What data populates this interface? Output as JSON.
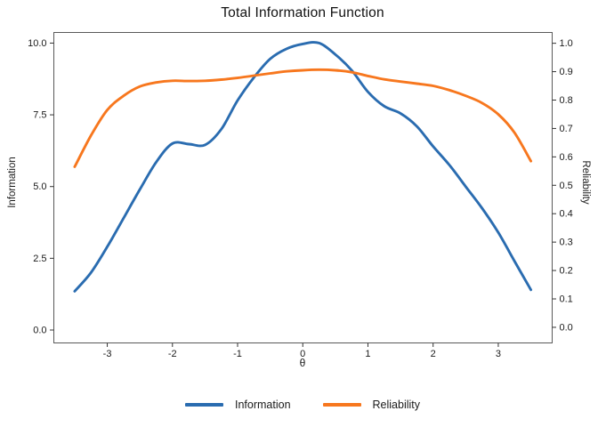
{
  "title": "Total Information Function",
  "chart_data": {
    "type": "line",
    "title": "Total Information Function",
    "xlabel": "θ",
    "ylabel_left": "Information",
    "ylabel_right": "Reliability",
    "grid": false,
    "legend_position": "bottom-center",
    "x_axis": {
      "range": [
        -3.82,
        3.827
      ],
      "tick_values": [
        -3,
        -2,
        -1,
        0,
        1,
        2,
        3
      ],
      "tick_labels": [
        "-3",
        "-2",
        "-1",
        "0",
        "1",
        "2",
        "3"
      ]
    },
    "y_axis_left": {
      "range": [
        -0.45,
        10.37
      ],
      "tick_values": [
        0,
        2.5,
        5,
        7.5,
        10
      ],
      "tick_labels": [
        "0.0",
        "2.5",
        "5.0",
        "7.5",
        "10.0"
      ]
    },
    "y_axis_right": {
      "range": [
        -0.055,
        1.038
      ],
      "tick_values": [
        0,
        0.1,
        0.2,
        0.3,
        0.4,
        0.5,
        0.6,
        0.7,
        0.8,
        0.9,
        1.0
      ],
      "tick_labels": [
        "0.0",
        "0.1",
        "0.2",
        "0.3",
        "0.4",
        "0.5",
        "0.6",
        "0.7",
        "0.8",
        "0.9",
        "1.0"
      ]
    },
    "x": [
      -3.5,
      -3.25,
      -3.0,
      -2.75,
      -2.5,
      -2.25,
      -2.0,
      -1.75,
      -1.5,
      -1.25,
      -1.0,
      -0.75,
      -0.5,
      -0.25,
      0.0,
      0.25,
      0.5,
      0.75,
      1.0,
      1.25,
      1.5,
      1.75,
      2.0,
      2.25,
      2.5,
      2.75,
      3.0,
      3.25,
      3.5
    ],
    "series": [
      {
        "name": "Information",
        "axis": "left",
        "color": "#2a6cb0",
        "values": [
          1.35,
          2.0,
          2.9,
          3.9,
          4.9,
          5.85,
          6.5,
          6.48,
          6.45,
          7.0,
          8.0,
          8.8,
          9.45,
          9.8,
          9.97,
          10.0,
          9.6,
          9.05,
          8.3,
          7.8,
          7.55,
          7.1,
          6.4,
          5.75,
          5.0,
          4.25,
          3.4,
          2.4,
          1.4
        ]
      },
      {
        "name": "Reliability",
        "axis": "right",
        "color": "#f7771e",
        "values": [
          0.565,
          0.675,
          0.765,
          0.815,
          0.848,
          0.862,
          0.868,
          0.867,
          0.868,
          0.872,
          0.878,
          0.886,
          0.894,
          0.901,
          0.905,
          0.907,
          0.905,
          0.898,
          0.885,
          0.873,
          0.865,
          0.858,
          0.85,
          0.835,
          0.815,
          0.79,
          0.75,
          0.685,
          0.585
        ]
      }
    ]
  },
  "legend": {
    "items": [
      {
        "label": "Information",
        "color": "#2a6cb0"
      },
      {
        "label": "Reliability",
        "color": "#f7771e"
      }
    ]
  },
  "colors": {
    "information_line": "#2a6cb0",
    "reliability_line": "#f7771e",
    "panel_border": "#595959",
    "tick": "#333333",
    "text": "#1a1a1a",
    "background": "#ffffff"
  }
}
